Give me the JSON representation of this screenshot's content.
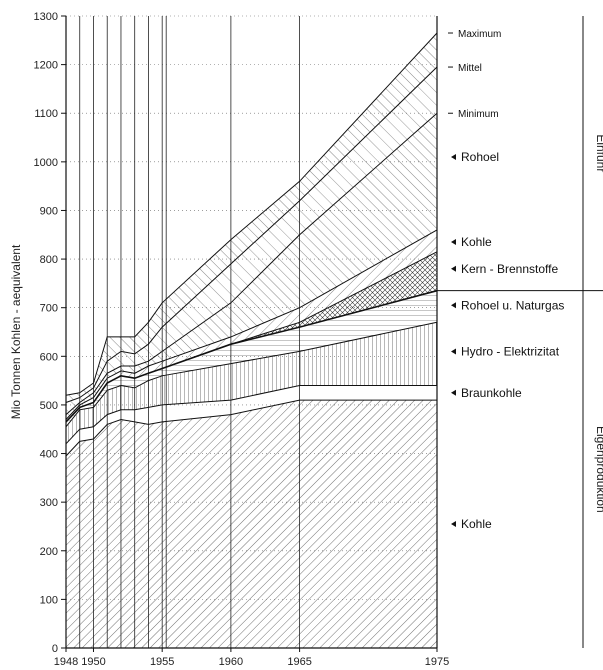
{
  "chart_data": {
    "type": "area",
    "xlabel": "",
    "ylabel": "Mio Tonnen Kohlen - aequivalent",
    "ylim": [
      0,
      1300
    ],
    "xlim": [
      1948,
      1975
    ],
    "yticks": [
      0,
      100,
      200,
      300,
      400,
      500,
      600,
      700,
      800,
      900,
      1000,
      1100,
      1200,
      1300
    ],
    "xtick_labels": [
      {
        "x": 1948,
        "label": "1948"
      },
      {
        "x": 1950,
        "label": "1950"
      },
      {
        "x": 1955,
        "label": "1955"
      },
      {
        "x": 1960,
        "label": "1960"
      },
      {
        "x": 1965,
        "label": "1965"
      },
      {
        "x": 1975,
        "label": "1975"
      }
    ],
    "grid": true,
    "x": [
      1948,
      1949,
      1950,
      1951,
      1952,
      1953,
      1954,
      1955,
      1960,
      1965,
      1975
    ],
    "series": [
      {
        "name": "Kohle",
        "values": [
          395,
          425,
          430,
          460,
          470,
          465,
          460,
          465,
          480,
          510,
          510
        ]
      },
      {
        "name": "Braunkohle",
        "values": [
          420,
          450,
          455,
          480,
          490,
          490,
          495,
          500,
          510,
          540,
          540
        ]
      },
      {
        "name": "Hydro - Elektrizitat",
        "values": [
          455,
          490,
          495,
          530,
          540,
          535,
          550,
          560,
          585,
          610,
          670
        ]
      },
      {
        "name": "Rohoel u. Naturgas",
        "values": [
          465,
          495,
          505,
          545,
          560,
          555,
          565,
          575,
          625,
          660,
          735
        ]
      },
      {
        "name": "Kern - Brennstoffe",
        "values": [
          465,
          495,
          505,
          545,
          560,
          555,
          565,
          575,
          625,
          670,
          815
        ]
      },
      {
        "name": "Kohle",
        "values": [
          470,
          500,
          515,
          555,
          570,
          565,
          580,
          590,
          640,
          700,
          860
        ]
      },
      {
        "name": "Minimum",
        "values": [
          480,
          505,
          525,
          565,
          580,
          580,
          590,
          610,
          710,
          850,
          1100
        ]
      },
      {
        "name": "Mittel",
        "values": [
          505,
          515,
          535,
          590,
          610,
          605,
          625,
          660,
          790,
          920,
          1195
        ]
      },
      {
        "name": "Maximum",
        "values": [
          520,
          525,
          545,
          640,
          640,
          640,
          670,
          710,
          840,
          960,
          1265
        ]
      }
    ],
    "vertical_lines": [
      1948,
      1949,
      1950,
      1951,
      1952,
      1953,
      1954,
      1955,
      1960,
      1965,
      1975
    ],
    "series_labels": [
      {
        "text": "Maximum",
        "at": 1265
      },
      {
        "text": "Mittel",
        "at": 1195
      },
      {
        "text": "Minimum",
        "at": 1100
      },
      {
        "text": "Rohoel",
        "at": 1010
      },
      {
        "text": "Kohle",
        "at": 835
      },
      {
        "text": "Kern - Brennstoffe",
        "at": 780
      },
      {
        "text": "Rohoel u. Naturgas",
        "at": 705
      },
      {
        "text": "Hydro - Elektrizitat",
        "at": 610
      },
      {
        "text": "Braunkohle",
        "at": 525
      },
      {
        "text": "Kohle",
        "at": 255
      }
    ],
    "sections": [
      {
        "text": "Einfuhr",
        "from": 735,
        "to": 1300
      },
      {
        "text": "Eigenproduktion",
        "from": 0,
        "to": 735
      }
    ]
  }
}
